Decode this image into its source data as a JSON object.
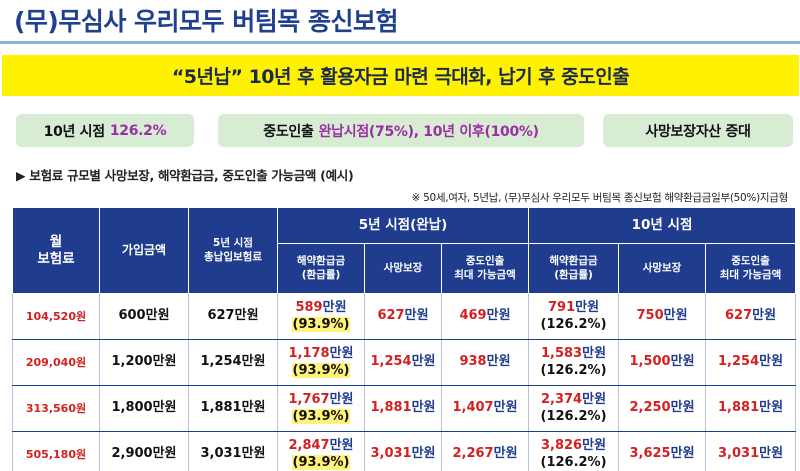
{
  "title": "(무)무심사 우리모두 버팀목 종신보험",
  "banner": "“5년납” 10년 후 활용자금 마련 극대화, 납기 후 중도인출",
  "pills": [
    {
      "label": "10년 시점",
      "highlight": "126.2%"
    },
    {
      "label": "중도인출",
      "highlight": "완납시점(75%), 10년 이후(100%)"
    },
    {
      "label": "사망보장자산 증대",
      "highlight": ""
    }
  ],
  "subhead": "▶  보험료 규모별 사망보장, 해약환급금, 중도인출 가능금액 (예시)",
  "note": "※  50세,여자, 5년납, (무)무심사 우리모두 버팀목 종신보험 해약환급금일부(50%)지급형",
  "table": {
    "headers": {
      "premium": "월\n보험료",
      "amount": "가입금액",
      "total": "5년 시점\n총납입보험료",
      "group5": "5년 시점(완납)",
      "group10": "10년 시점",
      "refund": "해약환급금\n(환급률)",
      "death": "사망보장",
      "withdraw": "중도인출\n최대 가능금액"
    },
    "unit": "만원",
    "rows": [
      {
        "premium": "104,520원",
        "amount": "600만원",
        "total": "627만원",
        "y5_refund": "589",
        "y5_rate": "(93.9%)",
        "y5_death": "627",
        "y5_withdraw": "469",
        "y10_refund": "791",
        "y10_rate": "(126.2%)",
        "y10_death": "750",
        "y10_withdraw": "627"
      },
      {
        "premium": "209,040원",
        "amount": "1,200만원",
        "total": "1,254만원",
        "y5_refund": "1,178",
        "y5_rate": "(93.9%)",
        "y5_death": "1,254",
        "y5_withdraw": "938",
        "y10_refund": "1,583",
        "y10_rate": "(126.2%)",
        "y10_death": "1,500",
        "y10_withdraw": "1,254"
      },
      {
        "premium": "313,560원",
        "amount": "1,800만원",
        "total": "1,881만원",
        "y5_refund": "1,767",
        "y5_rate": "(93.9%)",
        "y5_death": "1,881",
        "y5_withdraw": "1,407",
        "y10_refund": "2,374",
        "y10_rate": "(126.2%)",
        "y10_death": "2,250",
        "y10_withdraw": "1,881"
      },
      {
        "premium": "505,180원",
        "amount": "2,900만원",
        "total": "3,031만원",
        "y5_refund": "2,847",
        "y5_rate": "(93.9%)",
        "y5_death": "3,031",
        "y5_withdraw": "2,267",
        "y10_refund": "3,826",
        "y10_rate": "(126.2%)",
        "y10_death": "3,625",
        "y10_withdraw": "3,031"
      }
    ]
  }
}
